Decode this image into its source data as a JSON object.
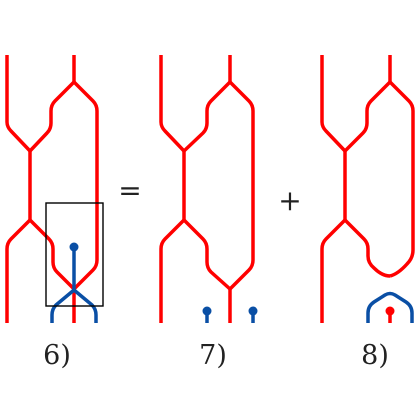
{
  "diagram": {
    "panels": [
      {
        "label": "6)"
      },
      {
        "label": "7)"
      },
      {
        "label": "8)"
      }
    ],
    "operators": [
      "=",
      "+"
    ],
    "colors": {
      "red_strand": "#ff0000",
      "blue_strand": "#0a4fa5",
      "box": "#000000",
      "text": "#222222"
    }
  }
}
